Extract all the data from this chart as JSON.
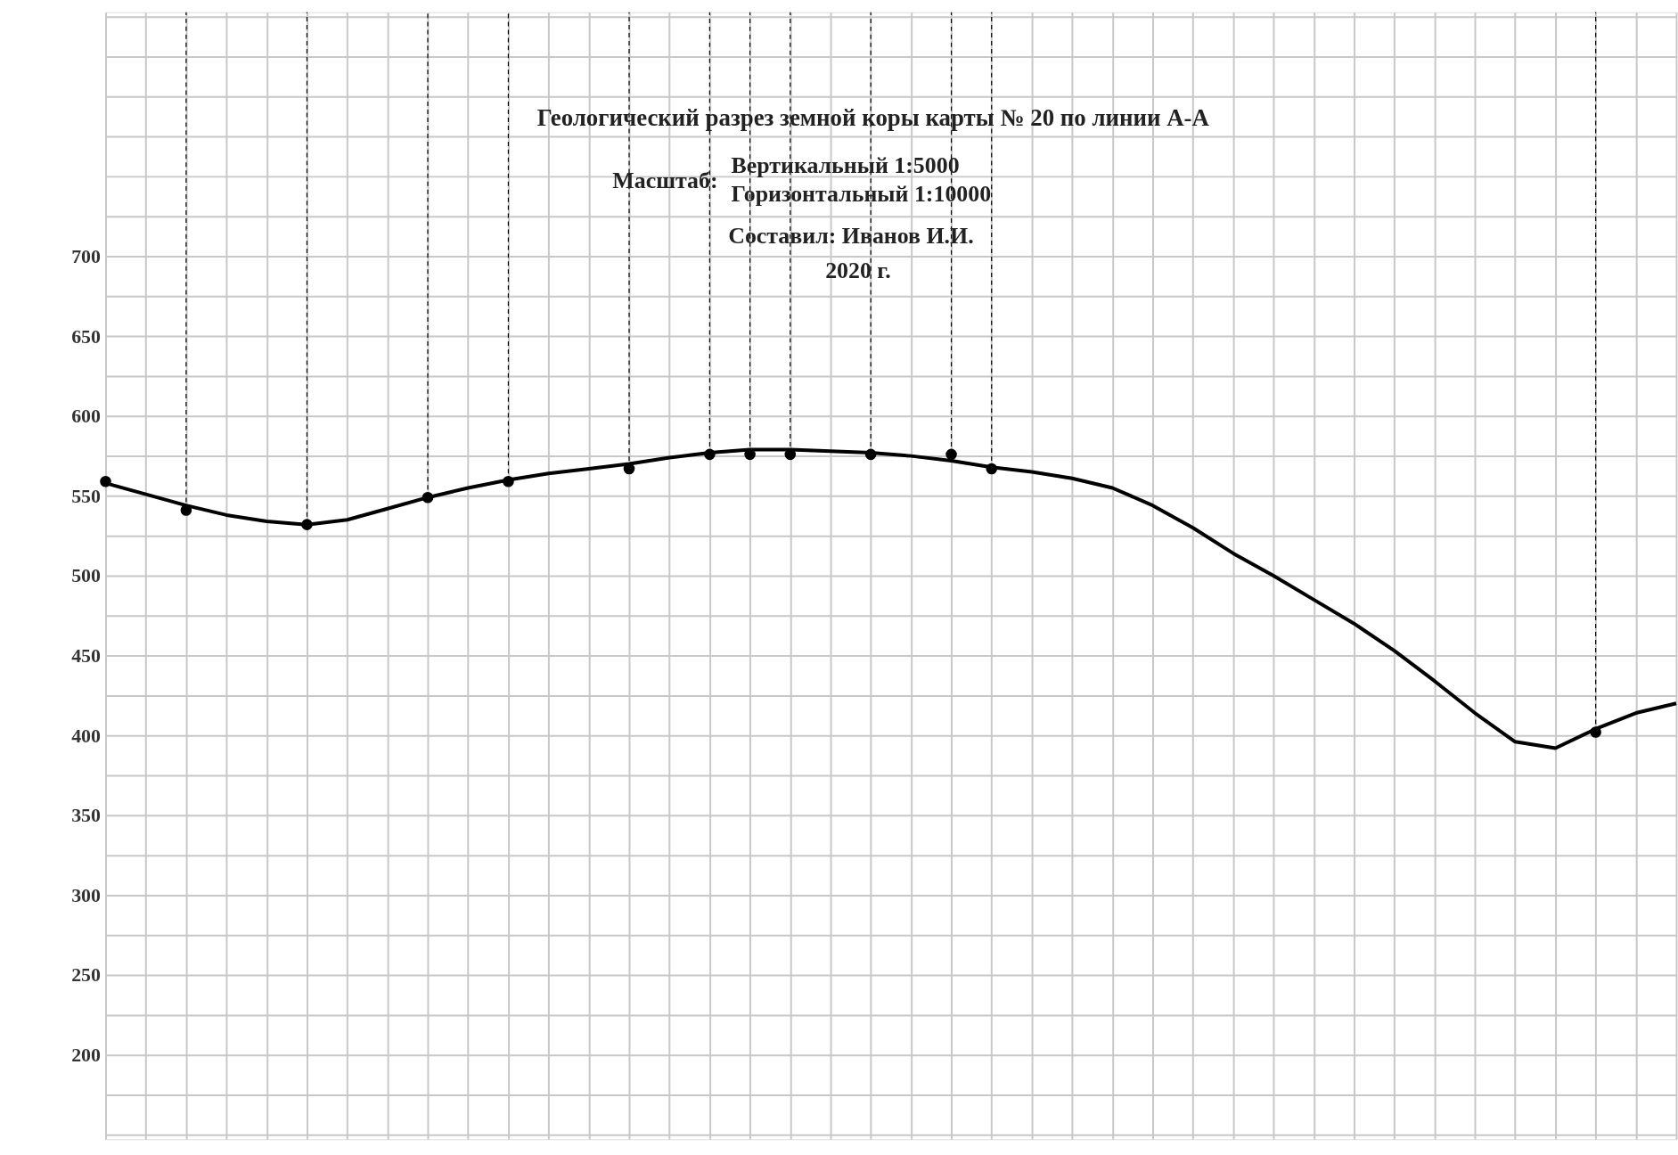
{
  "chart_data": {
    "type": "line",
    "title": "Геологический  разрез земной коры карты № 20 по линии А-А",
    "annotations": [
      "Масштаб:",
      "Вертикальный  1:5000",
      "Горизонтальный    1:10000",
      "Составил:  Иванов И.И.",
      "2020 г."
    ],
    "categories": [
      null,
      null,
      null,
      null,
      null,
      null,
      null,
      null,
      null,
      null,
      null,
      null,
      null,
      null,
      null,
      null,
      null,
      null,
      null,
      null,
      null,
      null,
      null,
      null,
      null,
      null,
      null,
      null,
      null,
      null,
      null,
      null,
      null,
      null,
      null,
      null,
      null,
      null,
      null,
      null
    ],
    "series": [
      {
        "color": "#000000",
        "marker": "none",
        "values": [
          558,
          551,
          544,
          538,
          534,
          532,
          535,
          542,
          549,
          555,
          560,
          564,
          567,
          570,
          574,
          577,
          579,
          579,
          578,
          577,
          575,
          572,
          568,
          565,
          561,
          555,
          544,
          530,
          514,
          500,
          485,
          470,
          453,
          434,
          414,
          396,
          392,
          404,
          414,
          420
        ]
      },
      {
        "type": "scatter",
        "color": "#000000",
        "marker": "circle",
        "values": [
          559,
          null,
          541,
          null,
          null,
          532,
          null,
          null,
          549,
          null,
          559,
          null,
          null,
          567,
          null,
          576,
          576,
          576,
          null,
          576,
          null,
          576,
          567,
          null,
          null,
          null,
          null,
          null,
          null,
          null,
          null,
          null,
          null,
          null,
          null,
          null,
          null,
          402,
          null,
          null
        ],
        "errors": [
          null,
          null,
          [
            541,
            853
          ],
          null,
          null,
          [
            532,
            853
          ],
          null,
          null,
          [
            549,
            853
          ],
          null,
          [
            559,
            853
          ],
          null,
          null,
          [
            567,
            853
          ],
          null,
          [
            576,
            853
          ],
          [
            576,
            853
          ],
          [
            576,
            853
          ],
          null,
          [
            576,
            853
          ],
          null,
          [
            576,
            853
          ],
          [
            567,
            853
          ],
          null,
          null,
          null,
          null,
          null,
          null,
          null,
          null,
          null,
          null,
          null,
          null,
          null,
          null,
          [
            402,
            853
          ],
          null,
          null
        ]
      }
    ],
    "ylim": [
      147,
      853
    ],
    "yticks": [
      {
        "value": 150,
        "label": null
      },
      {
        "value": 175,
        "label": null
      },
      200,
      {
        "value": 225,
        "label": null
      },
      250,
      {
        "value": 275,
        "label": null
      },
      300,
      {
        "value": 325,
        "label": null
      },
      350,
      {
        "value": 375,
        "label": null
      },
      400,
      {
        "value": 425,
        "label": null
      },
      450,
      {
        "value": 475,
        "label": null
      },
      500,
      {
        "value": 525,
        "label": null
      },
      550,
      {
        "value": 575,
        "label": null
      },
      600,
      {
        "value": 625,
        "label": null
      },
      650,
      {
        "value": 675,
        "label": null
      },
      700,
      {
        "value": 725,
        "label": null
      },
      {
        "value": 750,
        "label": null
      },
      {
        "value": 775,
        "label": null
      },
      {
        "value": 800,
        "label": null
      },
      {
        "value": 825,
        "label": null
      },
      {
        "value": 850,
        "label": null
      }
    ],
    "grid": true,
    "tick_labels": "y",
    "line_style": "solid"
  }
}
